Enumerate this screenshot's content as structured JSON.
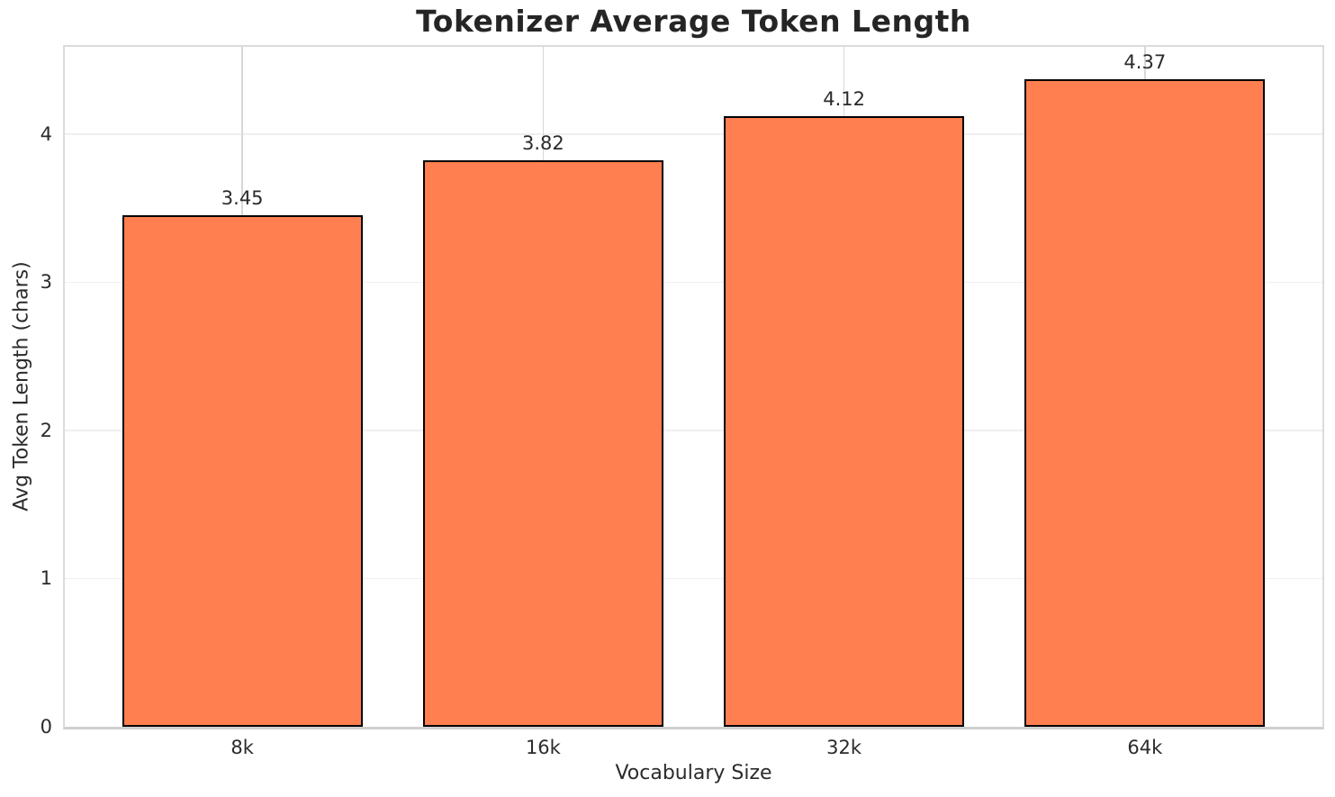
{
  "chart_data": {
    "type": "bar",
    "title": "Tokenizer Average Token Length",
    "xlabel": "Vocabulary Size",
    "ylabel": "Avg Token Length (chars)",
    "categories": [
      "8k",
      "16k",
      "32k",
      "64k"
    ],
    "values": [
      3.45,
      3.82,
      4.12,
      4.37
    ],
    "value_labels": [
      "3.45",
      "3.82",
      "4.12",
      "4.37"
    ],
    "yticks": [
      0,
      1,
      2,
      3,
      4
    ],
    "ylim": [
      0,
      4.5885
    ],
    "grid": true,
    "legend": false,
    "bar_color": "#FF7F50",
    "bar_edge_color": "#000000",
    "gridline_h_color": "#efefef",
    "gridline_v_color": "#d7d7d7",
    "text_color": "#2b2b2b"
  }
}
